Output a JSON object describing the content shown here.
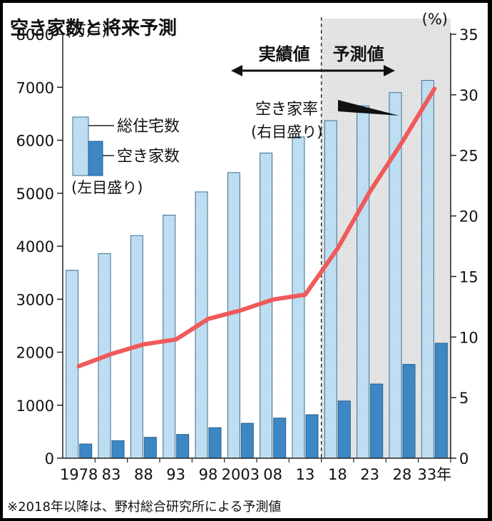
{
  "chart_data": {
    "type": "bar",
    "title": "空き家数と将来予測",
    "categories": [
      "1978",
      "83",
      "88",
      "93",
      "98",
      "2003",
      "08",
      "13",
      "18",
      "23",
      "28",
      "33年"
    ],
    "series": [
      {
        "name": "総住宅数",
        "axis": "left",
        "values": [
          3545,
          3861,
          4201,
          4588,
          5025,
          5389,
          5759,
          6063,
          6370,
          6650,
          6900,
          7130
        ],
        "color": "#bfe0f0"
      },
      {
        "name": "空き家数",
        "axis": "left",
        "values": [
          268,
          330,
          394,
          448,
          576,
          659,
          757,
          820,
          1080,
          1400,
          1770,
          2170
        ],
        "color": "#3d87c4"
      },
      {
        "name": "空き家率",
        "axis": "right",
        "type": "line",
        "values": [
          7.6,
          8.6,
          9.4,
          9.8,
          11.5,
          12.2,
          13.1,
          13.5,
          17.3,
          22.0,
          26.1,
          30.5
        ],
        "color": "#f05a5a"
      }
    ],
    "left_axis": {
      "unit_label": "(万戸)",
      "ylim": [
        0,
        8000
      ],
      "ticks": [
        "0",
        "1000",
        "2000",
        "3000",
        "4000",
        "5000",
        "6000",
        "7000",
        "8000"
      ]
    },
    "right_axis": {
      "unit_label": "(%)",
      "ylim": [
        0,
        35
      ],
      "ticks": [
        "0",
        "5",
        "10",
        "15",
        "20",
        "25",
        "30",
        "35"
      ]
    },
    "legend": {
      "total": "総住宅数",
      "vacant": "空き家数",
      "left_note": "(左目盛り)",
      "rate": "空き家率",
      "right_note": "(右目盛り)"
    },
    "phases": {
      "actual": "実績値",
      "forecast": "予測値"
    },
    "forecast_start_index": 8,
    "note": "※2018年以降は、野村総合研究所による予測値"
  }
}
